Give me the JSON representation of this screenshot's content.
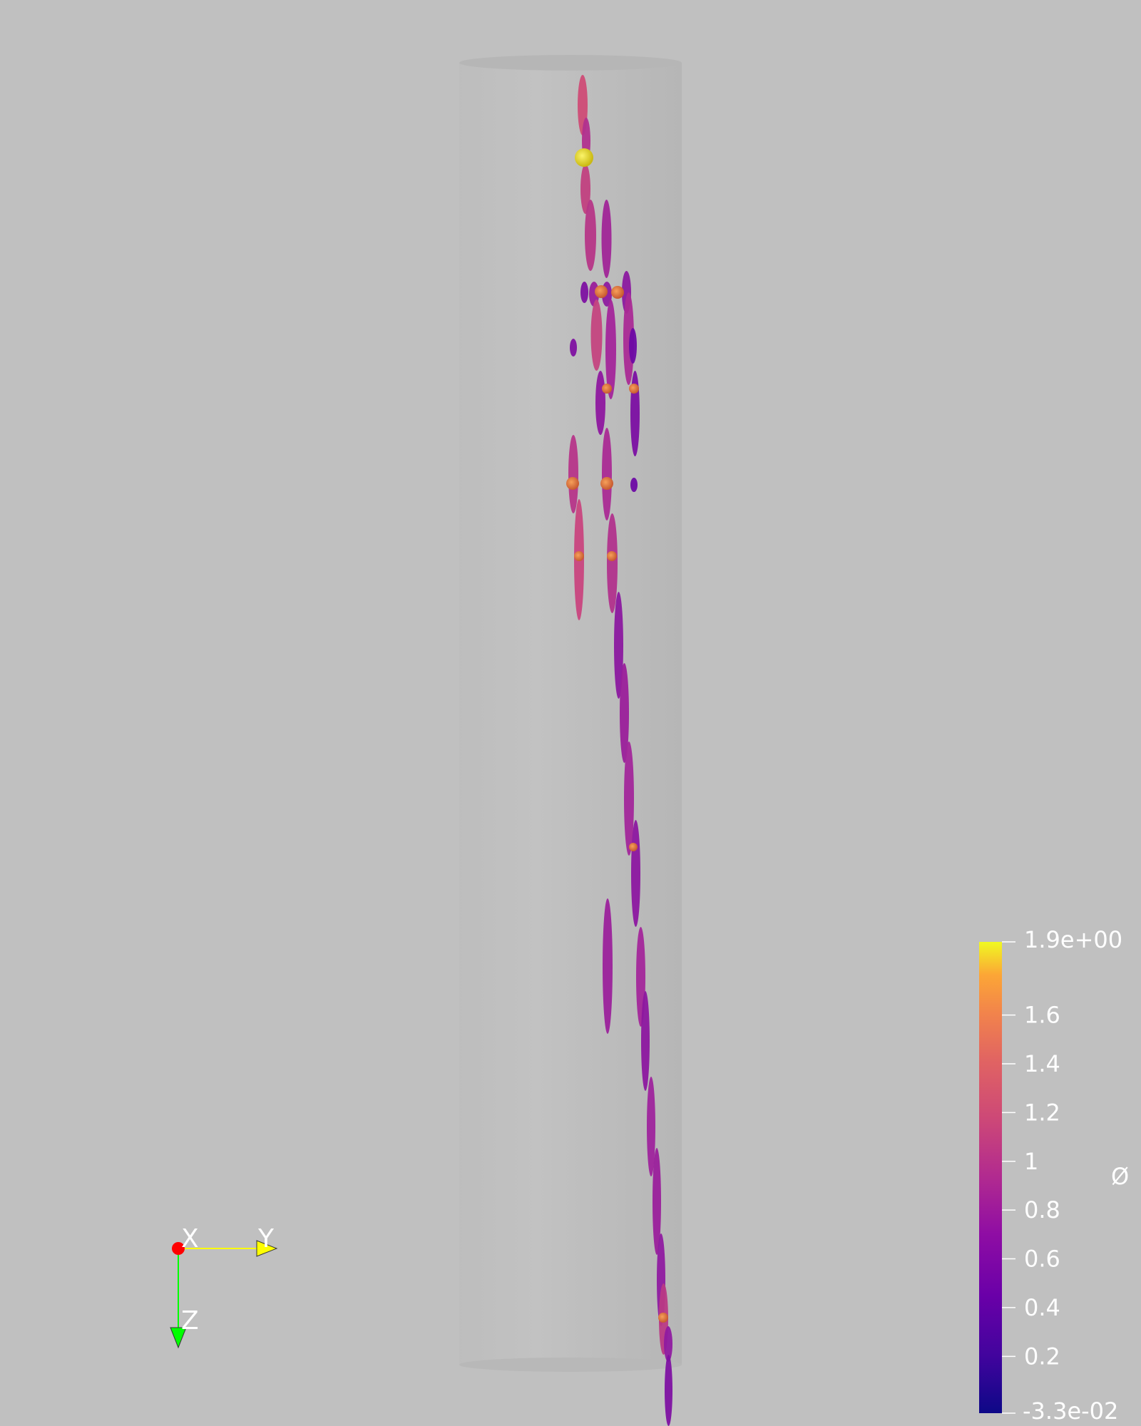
{
  "background_color": "#c0c0c0",
  "colorbar": {
    "title": "Ø",
    "colormap": "plasma",
    "range": [
      -0.033,
      1.9
    ],
    "top_label": "1.9e+00",
    "bottom_label": "-3.3e-02",
    "ticks": [
      "1.6",
      "1.4",
      "1.2",
      "1",
      "0.8",
      "0.6",
      "0.4",
      "0.2"
    ],
    "tick_values": [
      1.6,
      1.4,
      1.2,
      1.0,
      0.8,
      0.6,
      0.4,
      0.2
    ]
  },
  "orientation_axes": {
    "x_label": "X",
    "y_label": "Y",
    "z_label": "Z",
    "x_color": "#ff0000",
    "y_color": "#ffff00",
    "z_color": "#00ff00"
  },
  "colors": {
    "cylinder_fill": "#bbbbbb",
    "cylinder_edge": "#b3b3b3"
  }
}
